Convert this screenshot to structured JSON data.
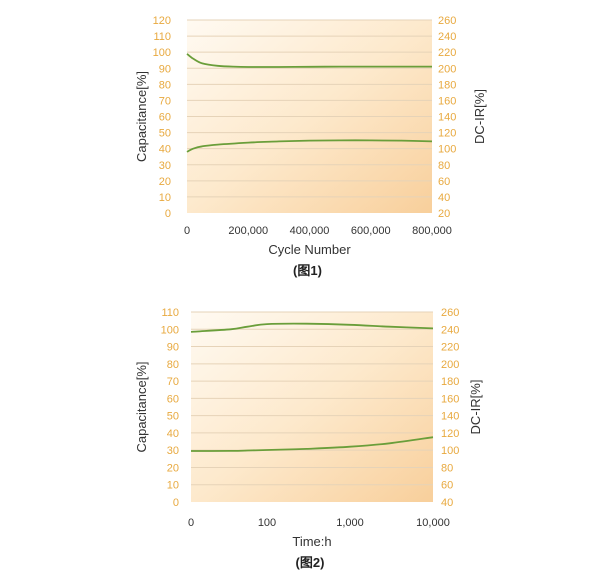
{
  "chart_data": [
    {
      "type": "line",
      "caption": "(图1)",
      "xlabel": "Cycle Number",
      "ylabel_left": "Capacitance[%]",
      "ylabel_right": "DC-IR[%]",
      "x_ticks": [
        "0",
        "200,000",
        "400,000",
        "600,000",
        "800,000"
      ],
      "xlim": [
        0,
        800000
      ],
      "ylim_left": [
        0,
        120
      ],
      "ylim_right": [
        20,
        260
      ],
      "y_ticks_left": [
        "0",
        "10",
        "20",
        "30",
        "40",
        "50",
        "60",
        "70",
        "80",
        "90",
        "100",
        "110",
        "120"
      ],
      "y_ticks_right": [
        "20",
        "40",
        "60",
        "80",
        "100",
        "120",
        "140",
        "160",
        "180",
        "200",
        "220",
        "240",
        "260"
      ],
      "grid": "horizontal",
      "series": [
        {
          "axis": "left",
          "x": [
            0,
            20000,
            50000,
            100000,
            150000,
            200000,
            300000,
            400000,
            500000,
            600000,
            700000,
            800000
          ],
          "y": [
            99,
            96,
            93,
            91.5,
            91,
            90.8,
            90.8,
            90.9,
            91,
            91,
            91,
            91
          ],
          "color": "#6a9e3a"
        },
        {
          "axis": "right",
          "x": [
            0,
            20000,
            50000,
            100000,
            200000,
            300000,
            400000,
            500000,
            600000,
            700000,
            800000
          ],
          "y": [
            96,
            100,
            103,
            105,
            107.5,
            109,
            110,
            110.3,
            110.3,
            110,
            109
          ],
          "color": "#6a9e3a"
        }
      ]
    },
    {
      "type": "line",
      "caption": "(图2)",
      "xlabel": "Time:h",
      "ylabel_left": "Capacitance[%]",
      "ylabel_right": "DC-IR[%]",
      "x_ticks": [
        "0",
        "100",
        "1,000",
        "10,000"
      ],
      "ylim_left": [
        0,
        110
      ],
      "ylim_right": [
        40,
        260
      ],
      "y_ticks_left": [
        "0",
        "10",
        "20",
        "30",
        "40",
        "50",
        "60",
        "70",
        "80",
        "90",
        "100",
        "110"
      ],
      "y_ticks_right": [
        "40",
        "60",
        "80",
        "100",
        "120",
        "140",
        "160",
        "180",
        "200",
        "220",
        "240",
        "260"
      ],
      "grid": "horizontal",
      "series": [
        {
          "axis": "left",
          "x": [
            0,
            10,
            30,
            100,
            300,
            1000,
            3000,
            10000
          ],
          "y": [
            98.5,
            100,
            101.5,
            103,
            103.2,
            102.6,
            101.5,
            100.5
          ],
          "color": "#6a9e3a"
        },
        {
          "axis": "right",
          "x": [
            0,
            10,
            30,
            100,
            300,
            1000,
            3000,
            10000
          ],
          "y": [
            99,
            99.2,
            99.6,
            100.2,
            101.5,
            104,
            108,
            115
          ],
          "color": "#6a9e3a"
        }
      ]
    }
  ]
}
